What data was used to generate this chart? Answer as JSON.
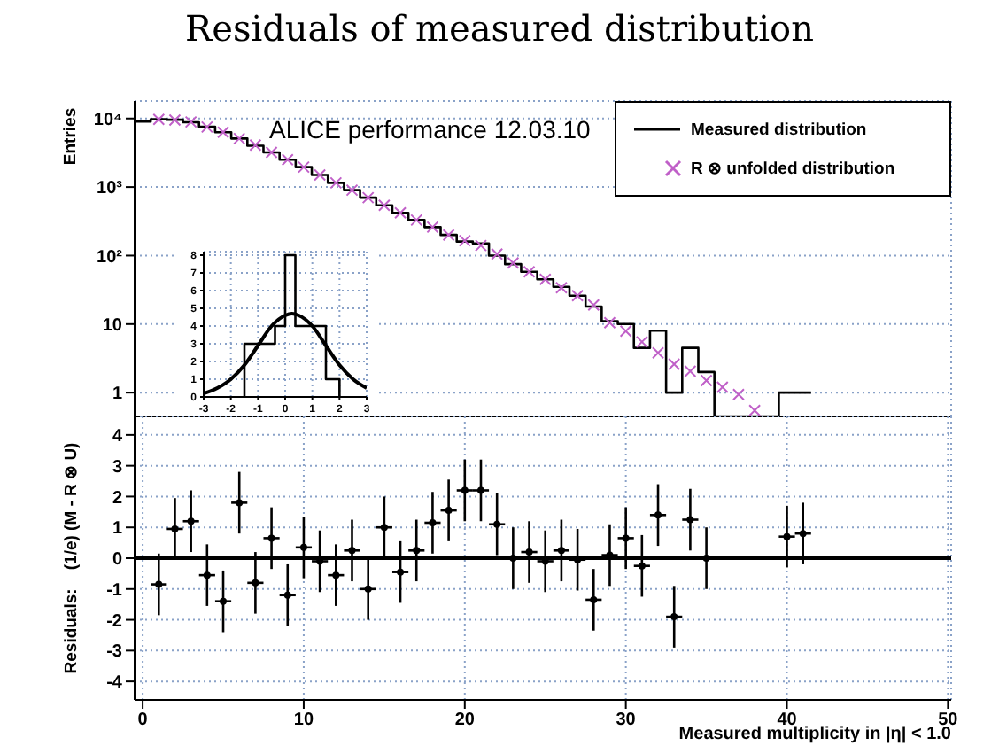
{
  "chart_data": [
    {
      "type": "histogram",
      "title": "Residuals of measured distribution",
      "ylabel": "Entries",
      "annotations": [
        "ALICE performance 12.03.10"
      ],
      "log": true,
      "grid": true,
      "legend": "top right",
      "tick_labels": "y",
      "xlim": [
        -0.5,
        50.2
      ],
      "xticks": [
        0,
        10,
        20,
        30,
        40,
        50
      ],
      "ylim": [
        0.45,
        18000
      ],
      "yticks": [
        1,
        10,
        {
          "value": 100,
          "label": "10²"
        },
        {
          "value": 1000,
          "label": "10³"
        },
        {
          "value": 10000,
          "label": "10⁴"
        }
      ],
      "series": [
        {
          "name": "Measured distribution",
          "color": "#000000",
          "bins": [
            -0.5,
            0.5,
            1.5,
            2.5,
            3.5,
            4.5,
            5.5,
            6.5,
            7.5,
            8.5,
            9.5,
            10.5,
            11.5,
            12.5,
            13.5,
            14.5,
            15.5,
            16.5,
            17.5,
            18.5,
            19.5,
            20.5,
            21.5,
            22.5,
            23.5,
            24.5,
            25.5,
            26.5,
            27.5,
            28.5,
            29.5,
            30.5,
            31.5,
            32.5,
            33.5,
            34.5,
            35.5,
            36.5,
            37.5,
            38.5,
            39.5,
            40.5,
            41.5
          ],
          "values": [
            9000,
            9800,
            9600,
            8800,
            7600,
            6300,
            5100,
            4000,
            3200,
            2500,
            1950,
            1500,
            1150,
            900,
            700,
            540,
            420,
            330,
            260,
            200,
            160,
            150,
            100,
            75,
            58,
            45,
            35,
            26,
            18,
            11,
            10,
            4.5,
            8,
            1,
            4.5,
            2,
            null,
            null,
            null,
            null,
            1,
            1
          ]
        },
        {
          "type": "scatter",
          "name": "R ⊗ unfolded distribution",
          "color": "#c060c8",
          "marker": "cross",
          "x": [
            1,
            2,
            3,
            4,
            5,
            6,
            7,
            8,
            9,
            10,
            11,
            12,
            13,
            14,
            15,
            16,
            17,
            18,
            19,
            20,
            21,
            22,
            23,
            24,
            25,
            26,
            27,
            28,
            29,
            30,
            31,
            32,
            33,
            34,
            35,
            36,
            37,
            38
          ],
          "values": [
            9700,
            9500,
            8900,
            7500,
            6300,
            5100,
            4100,
            3200,
            2500,
            1950,
            1500,
            1150,
            900,
            700,
            540,
            420,
            330,
            260,
            200,
            165,
            140,
            105,
            78,
            58,
            45,
            34,
            26,
            19,
            10.5,
            7.9,
            5.5,
            3.8,
            2.6,
            2.05,
            1.5,
            1.2,
            0.94,
            0.55
          ]
        }
      ]
    },
    {
      "type": "scatter",
      "xlabel": "Measured multiplicity in |η| < 1.0",
      "ylabel": "Residuals:    (1/e) (M - R ⊗ U)",
      "grid": true,
      "color": "#000000",
      "xlim": [
        -0.5,
        50.2
      ],
      "xticks": [
        0,
        10,
        20,
        30,
        40,
        50
      ],
      "ylim": [
        -4.6,
        4.6
      ],
      "yticks": [
        -4,
        -3,
        -2,
        -1,
        0,
        1,
        2,
        3,
        4
      ],
      "ref_lines": [
        {
          "axis": "y",
          "value": 0,
          "color": "#000000"
        }
      ],
      "x": [
        1,
        2,
        3,
        4,
        5,
        6,
        7,
        8,
        9,
        10,
        11,
        12,
        13,
        14,
        15,
        16,
        17,
        18,
        19,
        20,
        21,
        22,
        23,
        24,
        25,
        26,
        27,
        28,
        29,
        30,
        31,
        32,
        33,
        34,
        35,
        40,
        41
      ],
      "values": [
        -0.85,
        0.95,
        1.2,
        -0.55,
        -1.4,
        1.8,
        -0.8,
        0.65,
        -1.2,
        0.35,
        -0.1,
        -0.55,
        0.25,
        -1.0,
        1.0,
        -0.45,
        0.25,
        1.15,
        1.55,
        2.2,
        2.2,
        1.1,
        0,
        0.2,
        -0.1,
        0.25,
        -0.05,
        -1.35,
        0.1,
        0.65,
        -0.25,
        1.4,
        -1.9,
        1.25,
        0,
        0.7,
        0.8
      ],
      "errors": [
        1,
        1,
        1,
        1,
        1,
        1,
        1,
        1,
        1,
        1,
        1,
        1,
        1,
        1,
        1,
        1,
        1,
        1,
        1,
        1,
        1,
        1,
        1,
        1,
        1,
        1,
        1,
        1,
        1,
        1,
        1,
        1,
        1,
        1,
        1,
        1,
        1
      ],
      "xerrors": [
        0.5,
        0.5,
        0.5,
        0.5,
        0.5,
        0.5,
        0.5,
        0.5,
        0.5,
        0.5,
        0.5,
        0.5,
        0.5,
        0.5,
        0.5,
        0.5,
        0.5,
        0.5,
        0.5,
        0.5,
        0.5,
        0.5,
        0.5,
        0.5,
        0.5,
        0.5,
        0.5,
        0.5,
        0.5,
        0.5,
        0.5,
        0.5,
        0.5,
        0.5,
        0.5,
        0.5,
        0.5
      ]
    },
    {
      "type": "histogram",
      "grid": true,
      "xlim": [
        -3,
        3
      ],
      "xticks": [
        -3,
        -2,
        -1,
        0,
        1,
        2,
        3
      ],
      "ylim": [
        0,
        8.2
      ],
      "yticks": [
        0,
        1,
        2,
        3,
        4,
        5,
        6,
        7,
        8
      ],
      "series": [
        {
          "color": "#000000",
          "bins": [
            -1.5,
            -0.375,
            0,
            0.375,
            1.5,
            2
          ],
          "values": [
            3,
            4,
            8,
            4,
            1
          ]
        },
        {
          "type": "line",
          "color": "#000000",
          "x": [
            -3,
            -2.5,
            -2,
            -1.5,
            -1,
            -0.5,
            0,
            0.25,
            0.5,
            1,
            1.5,
            2,
            2.5,
            3
          ],
          "values": [
            0.2,
            0.5,
            1,
            1.8,
            2.9,
            4,
            4.6,
            4.7,
            4.6,
            4,
            2.9,
            1.8,
            1,
            0.5
          ]
        }
      ]
    }
  ]
}
